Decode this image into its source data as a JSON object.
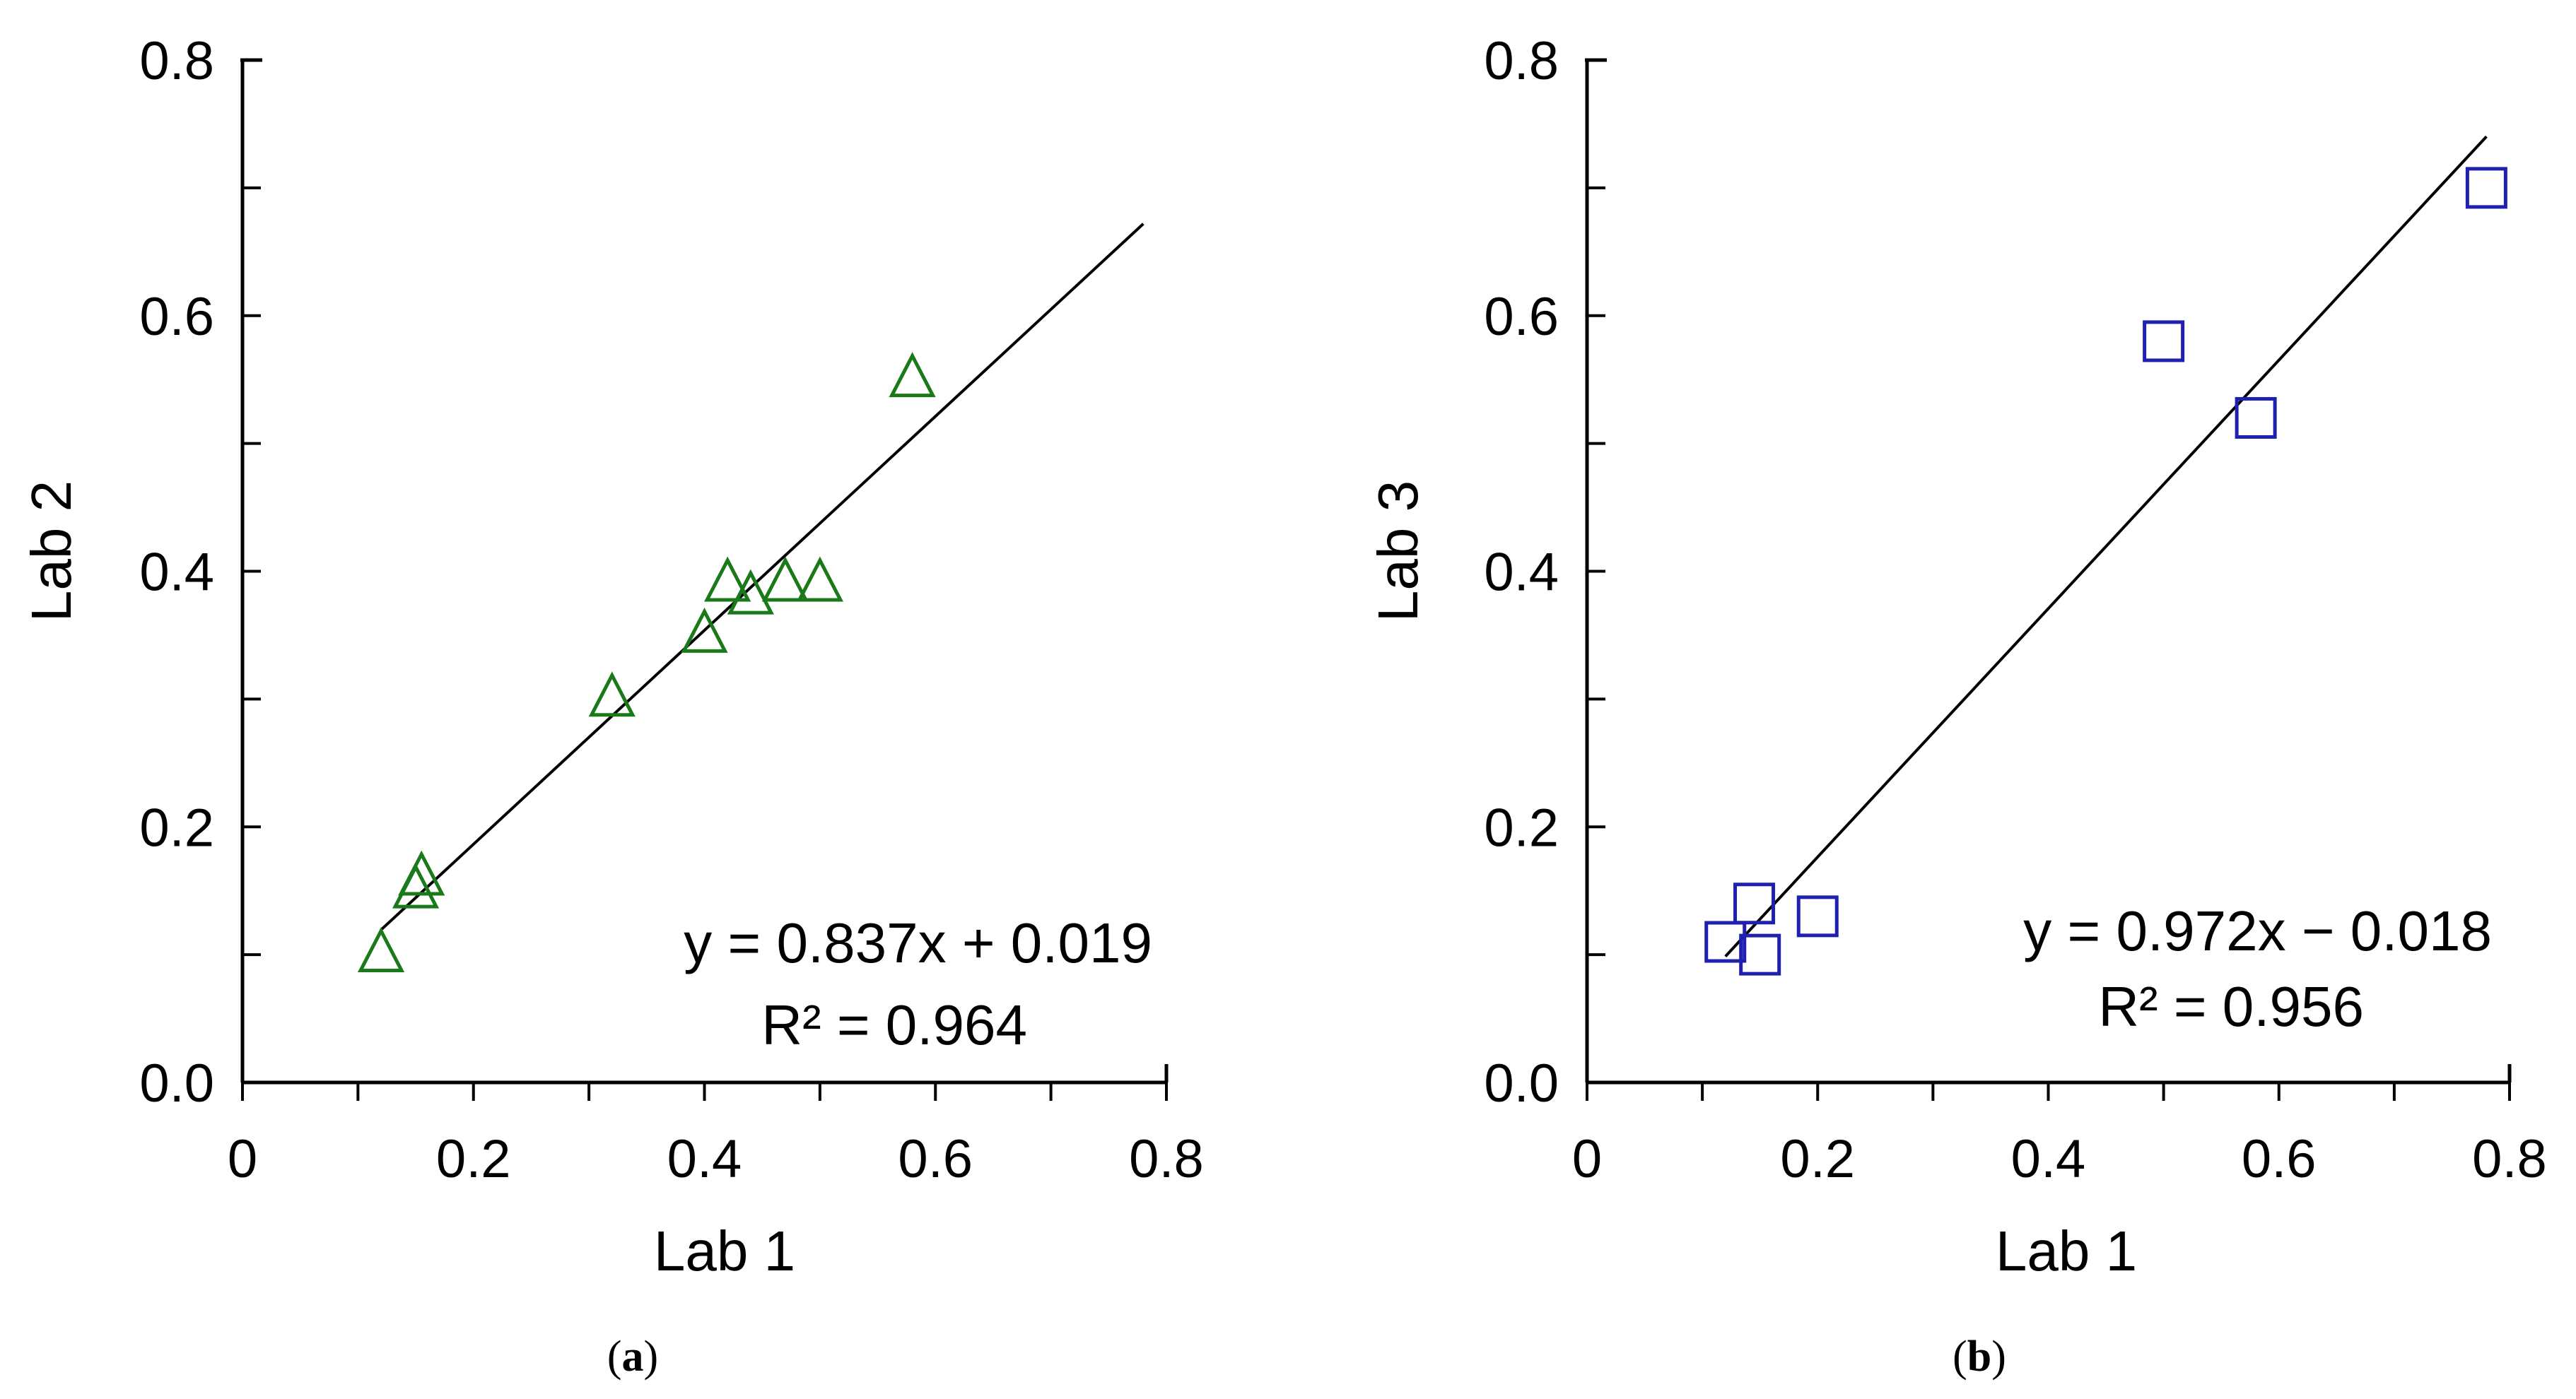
{
  "chart_data": [
    {
      "type": "scatter",
      "panel_label_open": "(",
      "panel_label": "a",
      "panel_label_close": ")",
      "xlabel": "Lab 1",
      "ylabel": "Lab 2",
      "xlim": [
        0,
        0.8
      ],
      "ylim": [
        0,
        0.8
      ],
      "x_ticks": [
        "0",
        "0.2",
        "0.4",
        "0.6",
        "0.8"
      ],
      "y_ticks": [
        "0.0",
        "0.2",
        "0.4",
        "0.6",
        "0.8"
      ],
      "x_tick_values": [
        0,
        0.2,
        0.4,
        0.6,
        0.8
      ],
      "y_tick_values": [
        0,
        0.2,
        0.4,
        0.6,
        0.8
      ],
      "marker": "triangle",
      "marker_color": "#1a7a1a",
      "grid": false,
      "series": [
        {
          "points": [
            {
              "x": 0.12,
              "y": 0.1
            },
            {
              "x": 0.15,
              "y": 0.15
            },
            {
              "x": 0.155,
              "y": 0.16
            },
            {
              "x": 0.32,
              "y": 0.3
            },
            {
              "x": 0.4,
              "y": 0.35
            },
            {
              "x": 0.42,
              "y": 0.39
            },
            {
              "x": 0.44,
              "y": 0.38
            },
            {
              "x": 0.47,
              "y": 0.39
            },
            {
              "x": 0.5,
              "y": 0.39
            },
            {
              "x": 0.58,
              "y": 0.55
            }
          ]
        }
      ],
      "trendline": {
        "slope": 0.837,
        "intercept": 0.019,
        "x_range": [
          0.12,
          0.78
        ]
      },
      "equation": "y = 0.837x + 0.019",
      "r_squared": "R² = 0.964"
    },
    {
      "type": "scatter",
      "panel_label_open": "(",
      "panel_label": "b",
      "panel_label_close": ")",
      "xlabel": "Lab 1",
      "ylabel": "Lab 3",
      "xlim": [
        0,
        0.8
      ],
      "ylim": [
        0,
        0.8
      ],
      "x_ticks": [
        "0",
        "0.2",
        "0.4",
        "0.6",
        "0.8"
      ],
      "y_ticks": [
        "0.0",
        "0.2",
        "0.4",
        "0.6",
        "0.8"
      ],
      "x_tick_values": [
        0,
        0.2,
        0.4,
        0.6,
        0.8
      ],
      "y_tick_values": [
        0,
        0.2,
        0.4,
        0.6,
        0.8
      ],
      "marker": "square",
      "marker_color": "#2020b0",
      "grid": false,
      "series": [
        {
          "points": [
            {
              "x": 0.12,
              "y": 0.11
            },
            {
              "x": 0.145,
              "y": 0.14
            },
            {
              "x": 0.15,
              "y": 0.1
            },
            {
              "x": 0.2,
              "y": 0.13
            },
            {
              "x": 0.5,
              "y": 0.58
            },
            {
              "x": 0.58,
              "y": 0.52
            },
            {
              "x": 0.78,
              "y": 0.7
            }
          ]
        }
      ],
      "trendline": {
        "slope": 0.972,
        "intercept": -0.018,
        "x_range": [
          0.12,
          0.78
        ]
      },
      "equation": "y = 0.972x − 0.018",
      "r_squared": "R² = 0.956"
    }
  ]
}
